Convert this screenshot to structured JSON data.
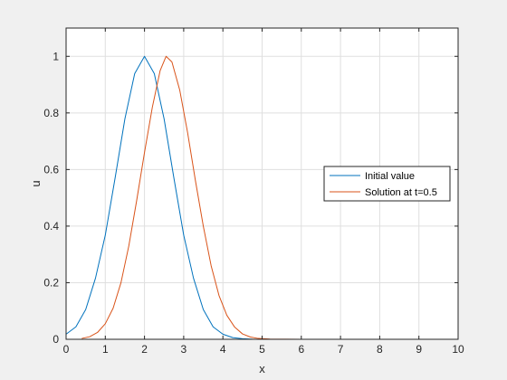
{
  "chart_data": {
    "type": "line",
    "xlabel": "x",
    "ylabel": "u",
    "xlim": [
      0,
      10
    ],
    "ylim": [
      0,
      1.1
    ],
    "xticks": [
      0,
      1,
      2,
      3,
      4,
      5,
      6,
      7,
      8,
      9,
      10
    ],
    "yticks": [
      0,
      0.2,
      0.4,
      0.6,
      0.8,
      1
    ],
    "xtick_labels": [
      "0",
      "1",
      "2",
      "3",
      "4",
      "5",
      "6",
      "7",
      "8",
      "9",
      "10"
    ],
    "ytick_labels": [
      "0",
      "0.2",
      "0.4",
      "0.6",
      "0.8",
      "1"
    ],
    "grid": true,
    "legend_position": "right",
    "series": [
      {
        "name": "Initial value",
        "color": "#0072bd",
        "x": [
          0,
          0.25,
          0.5,
          0.75,
          1.0,
          1.25,
          1.5,
          1.75,
          2.0,
          2.25,
          2.5,
          2.75,
          3.0,
          3.25,
          3.5,
          3.75,
          4.0,
          4.25,
          4.5,
          4.75,
          5.0,
          6.0,
          7.0,
          8.0,
          9.0,
          10.0
        ],
        "y": [
          0.018,
          0.044,
          0.105,
          0.216,
          0.368,
          0.57,
          0.779,
          0.939,
          1.0,
          0.939,
          0.779,
          0.57,
          0.368,
          0.216,
          0.105,
          0.044,
          0.018,
          0.006,
          0.002,
          0.0005,
          0.0001,
          0,
          0,
          0,
          0,
          0
        ]
      },
      {
        "name": "Solution at t=0.5",
        "color": "#d95319",
        "x": [
          0.4,
          0.6,
          0.8,
          1.0,
          1.2,
          1.4,
          1.6,
          1.8,
          2.0,
          2.2,
          2.4,
          2.55,
          2.7,
          2.9,
          3.1,
          3.3,
          3.5,
          3.7,
          3.9,
          4.1,
          4.3,
          4.5,
          4.7,
          4.9,
          5.2,
          6.0,
          7.0,
          8.0,
          9.0,
          10.0
        ],
        "y": [
          0.003,
          0.009,
          0.024,
          0.055,
          0.11,
          0.2,
          0.33,
          0.49,
          0.66,
          0.82,
          0.95,
          1.0,
          0.98,
          0.88,
          0.73,
          0.56,
          0.4,
          0.26,
          0.155,
          0.085,
          0.043,
          0.019,
          0.008,
          0.003,
          0.0008,
          0,
          0,
          0,
          0,
          0
        ]
      }
    ]
  }
}
